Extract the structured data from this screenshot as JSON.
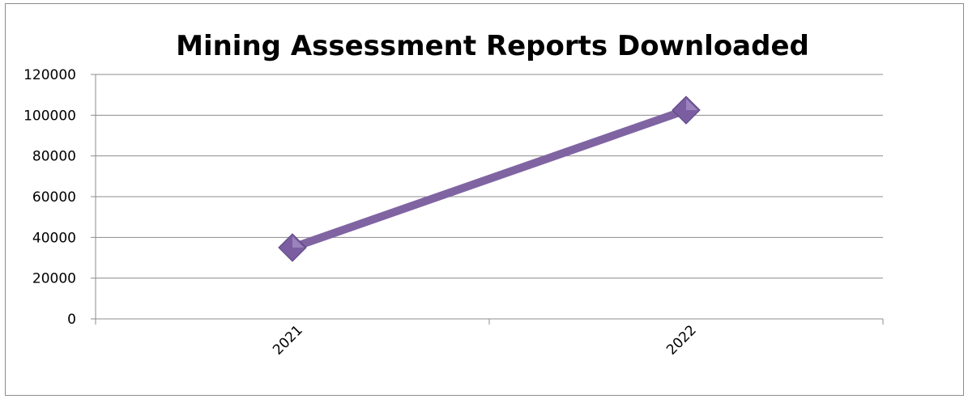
{
  "chart_data": {
    "type": "line",
    "title": "Mining Assessment Reports Downloaded",
    "xlabel": "",
    "ylabel": "",
    "categories": [
      "2021",
      "2022"
    ],
    "series": [
      {
        "values": [
          35000,
          102500
        ],
        "color": "#8064a2",
        "marker": "diamond"
      }
    ],
    "ylim": [
      0,
      120000
    ],
    "yticks": [
      "0",
      "20000",
      "40000",
      "60000",
      "80000",
      "100000",
      "120000"
    ],
    "grid": true,
    "legend": "none",
    "colors": {
      "series": "#8064a2",
      "marker": "#7a5ea1",
      "grid": "#8c8c8c",
      "axis": "#8c8c8c"
    }
  }
}
